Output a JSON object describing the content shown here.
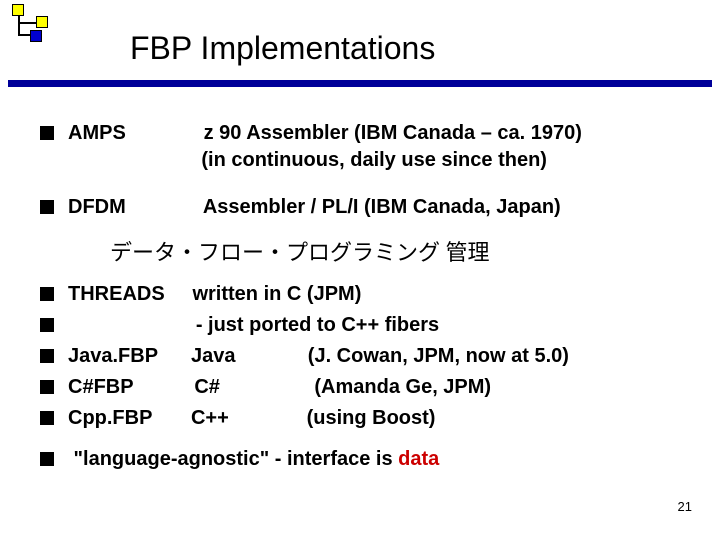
{
  "title": "FBP Implementations",
  "page_number": "21",
  "colors": {
    "underline": "#000099",
    "bullet": "#000000",
    "accent_red": "#cc0000",
    "logo_yellow": "#ffff00",
    "logo_blue": "#0000d0"
  },
  "rows": {
    "amps_name": "AMPS",
    "amps_desc1": " z 90 Assembler (IBM Canada – ca. 1970)",
    "amps_desc2": "(in continuous, daily use since then)",
    "dfdm_name": "DFDM",
    "dfdm_desc": "Assembler / PL/I (IBM Canada, Japan)",
    "japanese": "データ・フロー・プログラミング 管理",
    "threads_name": "THREADS",
    "threads_desc": "written in C (JPM)",
    "threads_sub": "- just ported to C++ fibers",
    "javafbp_name": "Java.FBP",
    "javafbp_lang": "Java",
    "javafbp_who": "(J. Cowan, JPM, now at 5.0)",
    "csfbp_name": "C#FBP",
    "csfbp_lang": "C#",
    "csfbp_who": "(Amanda Ge, JPM)",
    "cppfbp_name": "Cpp.FBP",
    "cppfbp_lang": "C++",
    "cppfbp_who": "(using Boost)",
    "closing_pre": " \"language-agnostic\" - interface is ",
    "closing_red": "data"
  }
}
